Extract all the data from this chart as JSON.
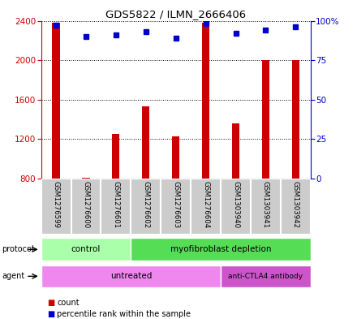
{
  "title": "GDS5822 / ILMN_2666406",
  "samples": [
    "GSM1276599",
    "GSM1276600",
    "GSM1276601",
    "GSM1276602",
    "GSM1276603",
    "GSM1276604",
    "GSM1303940",
    "GSM1303941",
    "GSM1303942"
  ],
  "counts": [
    2380,
    810,
    1250,
    1530,
    1230,
    2380,
    1360,
    2000,
    2000
  ],
  "percentiles": [
    97,
    90,
    91,
    93,
    89,
    98,
    92,
    94,
    96
  ],
  "ymin": 800,
  "ymax": 2400,
  "yticks": [
    800,
    1200,
    1600,
    2000,
    2400
  ],
  "right_yticks": [
    0,
    25,
    50,
    75,
    100
  ],
  "bar_color": "#cc0000",
  "dot_color": "#0000cc",
  "protocol_control_color": "#aaffaa",
  "protocol_deplete_color": "#55dd55",
  "agent_untreated_color": "#ee88ee",
  "agent_antibody_color": "#cc55cc",
  "legend_count_color": "#cc0000",
  "legend_dot_color": "#0000cc",
  "bar_width": 0.25,
  "background_color": "#ffffff",
  "sample_box_color": "#cccccc",
  "sample_box_edge": "#aaaaaa"
}
